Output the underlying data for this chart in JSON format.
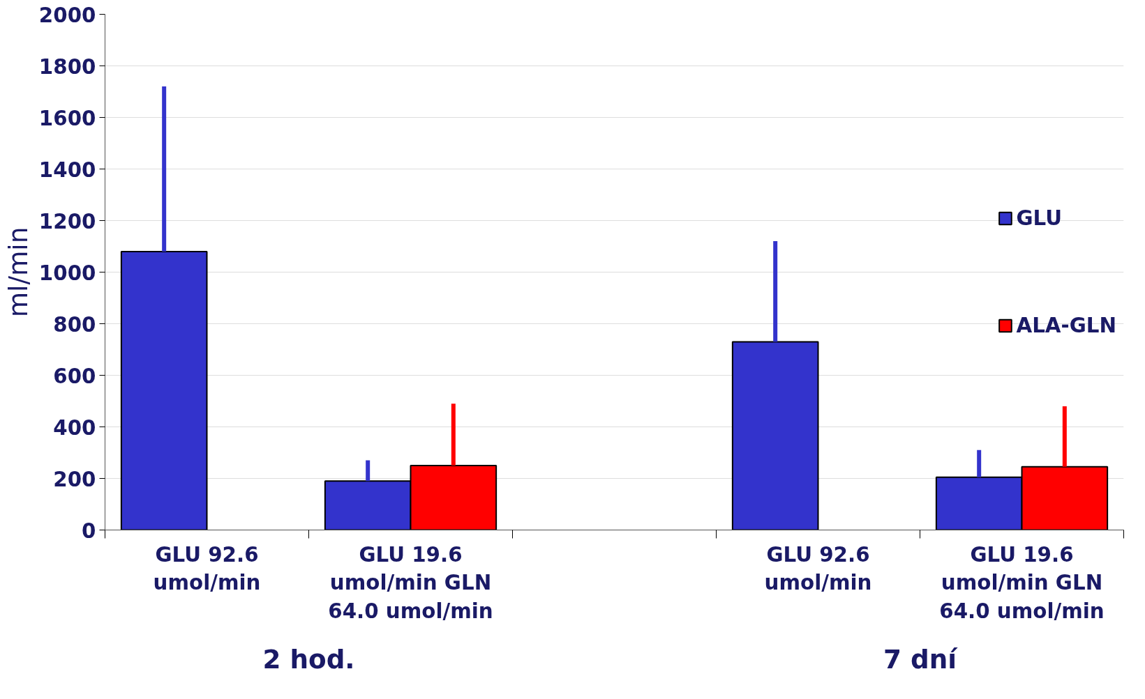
{
  "chart_data": {
    "type": "bar",
    "categories": [
      "GLU 92.6 umol/min",
      "GLU 19.6 umol/min GLN 64.0 umol/min",
      null,
      "GLU 92.6 umol/min",
      "GLU 19.6 umol/min GLN 64.0 umol/min"
    ],
    "series": [
      {
        "name": "GLU",
        "color": "#3333cc",
        "values": [
          1080,
          190,
          null,
          730,
          205
        ],
        "errors": [
          [
            1080,
            1720
          ],
          [
            190,
            270
          ],
          null,
          [
            730,
            1120
          ],
          [
            205,
            310
          ]
        ]
      },
      {
        "name": "ALA-GLN",
        "color": "#ff0000",
        "values": [
          null,
          250,
          null,
          null,
          245
        ],
        "errors": [
          null,
          [
            250,
            490
          ],
          null,
          null,
          [
            245,
            480
          ]
        ]
      }
    ],
    "ylabel": "ml/min",
    "ylim": [
      0,
      2000
    ],
    "yticks": [
      0,
      200,
      400,
      600,
      800,
      1000,
      1200,
      1400,
      1600,
      1800,
      2000
    ],
    "grid": "y",
    "legend": "right",
    "annotations": [
      "2 hod.",
      "7 dní"
    ]
  }
}
